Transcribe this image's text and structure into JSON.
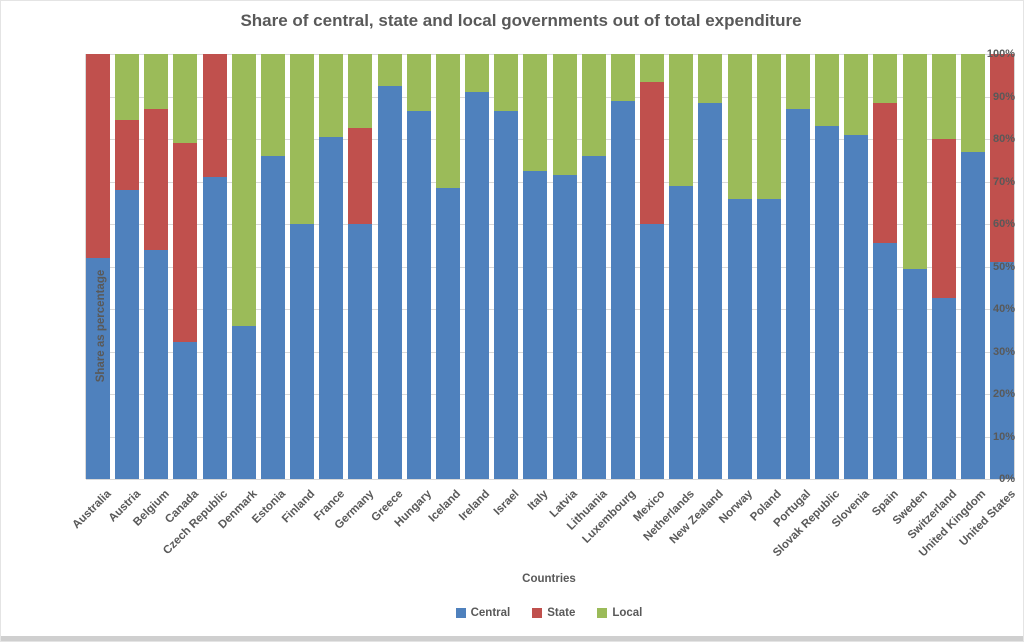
{
  "title": "Share of central, state and local governments out of total expenditure",
  "colors": {
    "central": "#4F81BD",
    "state": "#C0504D",
    "local": "#9BBB59",
    "text": "#595959",
    "gridline": "#D9D9D9",
    "bottom_strip": "#CFCFCF"
  },
  "axes": {
    "y_title": "Share as percentage",
    "x_title": "Countries",
    "yticks": [
      "0%",
      "10%",
      "20%",
      "30%",
      "40%",
      "50%",
      "60%",
      "70%",
      "80%",
      "90%",
      "100%"
    ]
  },
  "legend": {
    "items": [
      {
        "label": "Central",
        "color": "#4F81BD"
      },
      {
        "label": "State",
        "color": "#C0504D"
      },
      {
        "label": "Local",
        "color": "#9BBB59"
      }
    ]
  },
  "chart_data": {
    "type": "bar",
    "stacked": true,
    "percent_stacked": true,
    "title": "Share of central, state and local governments out of total expenditure",
    "xlabel": "Countries",
    "ylabel": "Share as percentage",
    "ylim": [
      0,
      100
    ],
    "grid": true,
    "legend_position": "bottom",
    "categories": [
      "Australia",
      "Austria",
      "Belgium",
      "Canada",
      "Czech Republic",
      "Denmark",
      "Estonia",
      "Finland",
      "France",
      "Germany",
      "Greece",
      "Hungary",
      "Iceland",
      "Ireland",
      "Israel",
      "Italy",
      "Latvia",
      "Lithuania",
      "Luxembourg",
      "Mexico",
      "Netherlands",
      "New Zealand",
      "Norway",
      "Poland",
      "Portugal",
      "Slovak Republic",
      "Slovenia",
      "Spain",
      "Sweden",
      "Switzerland",
      "United Kingdom",
      "United States"
    ],
    "series": [
      {
        "name": "Central",
        "color_key": "central",
        "values": [
          52,
          68,
          54,
          32.3,
          71,
          36,
          76,
          60,
          80.5,
          60,
          92.5,
          86.5,
          68.5,
          91,
          86.5,
          72.5,
          71.5,
          76,
          89,
          60,
          69,
          88.5,
          66,
          66,
          87,
          83,
          81,
          55.5,
          49.5,
          42.5,
          77,
          51
        ]
      },
      {
        "name": "State",
        "color_key": "state",
        "values": [
          48,
          16.5,
          33,
          46.7,
          29,
          0,
          0,
          0,
          0,
          22.5,
          0,
          0,
          0,
          0,
          0,
          0,
          0,
          0,
          0,
          33.5,
          0,
          0,
          0,
          0,
          0,
          0,
          0,
          33,
          0,
          37.5,
          0,
          49
        ]
      },
      {
        "name": "Local",
        "color_key": "local",
        "values": [
          0,
          15.5,
          13,
          21,
          0,
          64,
          24,
          40,
          19.5,
          17.5,
          7.5,
          13.5,
          31.5,
          9,
          13.5,
          27.5,
          28.5,
          24,
          11,
          6.5,
          31,
          11.5,
          34,
          34,
          13,
          17,
          19,
          11.5,
          50.5,
          20,
          23,
          0
        ]
      }
    ]
  }
}
